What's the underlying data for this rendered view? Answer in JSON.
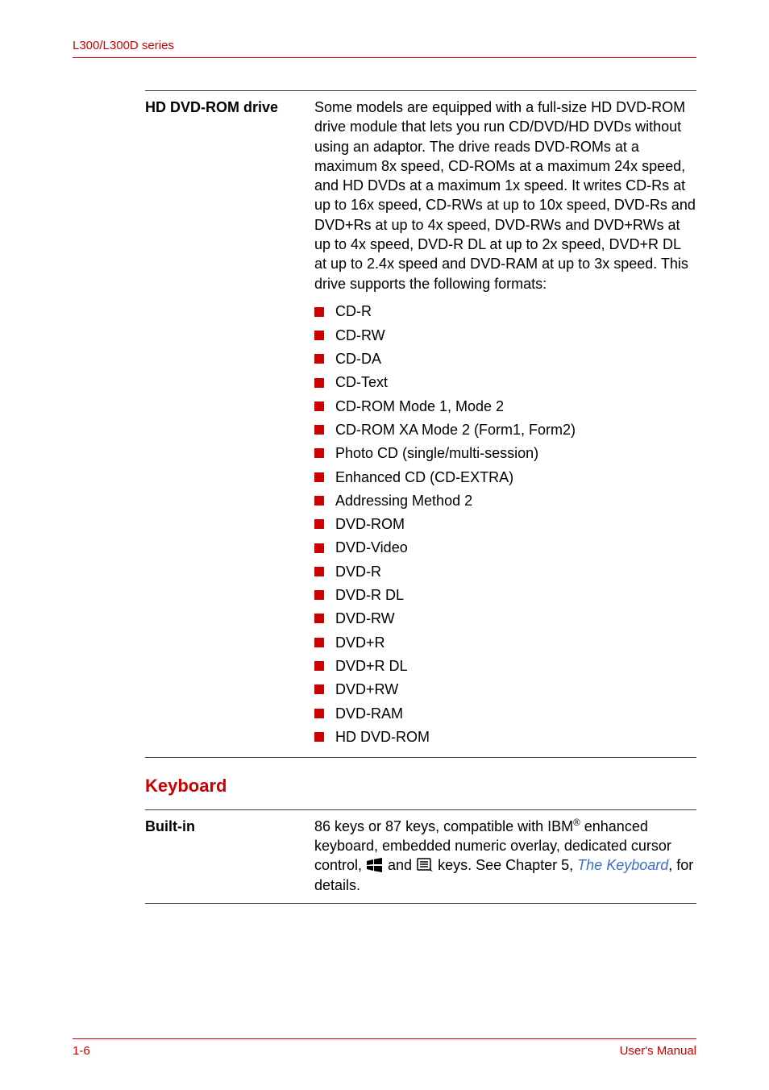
{
  "colors": {
    "red": "#cc0000",
    "blue": "#3a6fc9",
    "text": "#000000",
    "rule": "#3a3a3a"
  },
  "header": {
    "series": "L300/L300D series"
  },
  "spec_hd_dvd": {
    "label": "HD DVD-ROM drive",
    "desc": "Some models are equipped with a full-size HD DVD-ROM drive module that lets you run CD/DVD/HD DVDs without using an adaptor. The drive reads DVD-ROMs at a maximum 8x speed, CD-ROMs at a maximum 24x speed, and HD DVDs at a maximum 1x speed. It writes CD-Rs at up to 16x speed, CD-RWs at up to 10x speed, DVD-Rs and DVD+Rs at up to 4x speed, DVD-RWs and DVD+RWs at up to 4x speed, DVD-R DL at up to 2x speed, DVD+R DL at up to 2.4x speed and DVD-RAM at up to 3x speed. This drive supports the following formats:",
    "items": [
      "CD-R",
      "CD-RW",
      "CD-DA",
      "CD-Text",
      "CD-ROM Mode 1, Mode 2",
      "CD-ROM XA Mode 2 (Form1, Form2)",
      "Photo CD (single/multi-session)",
      "Enhanced CD (CD-EXTRA)",
      "Addressing Method 2",
      "DVD-ROM",
      "DVD-Video",
      "DVD-R",
      "DVD-R DL",
      "DVD-RW",
      "DVD+R",
      "DVD+R DL",
      "DVD+RW",
      "DVD-RAM",
      "HD DVD-ROM"
    ]
  },
  "keyboard": {
    "heading": "Keyboard",
    "builtin_label": "Built-in",
    "desc_pre": "86 keys or 87 keys, compatible with IBM",
    "desc_mid1": " enhanced keyboard, embedded numeric overlay, dedicated cursor control, ",
    "desc_and": " and ",
    "desc_keys_suffix": " keys. See Chapter 5, ",
    "link_text": "The Keyboard",
    "desc_end": ", for details.",
    "reg": "®"
  },
  "footer": {
    "page": "1-6",
    "manual": "User's Manual"
  }
}
